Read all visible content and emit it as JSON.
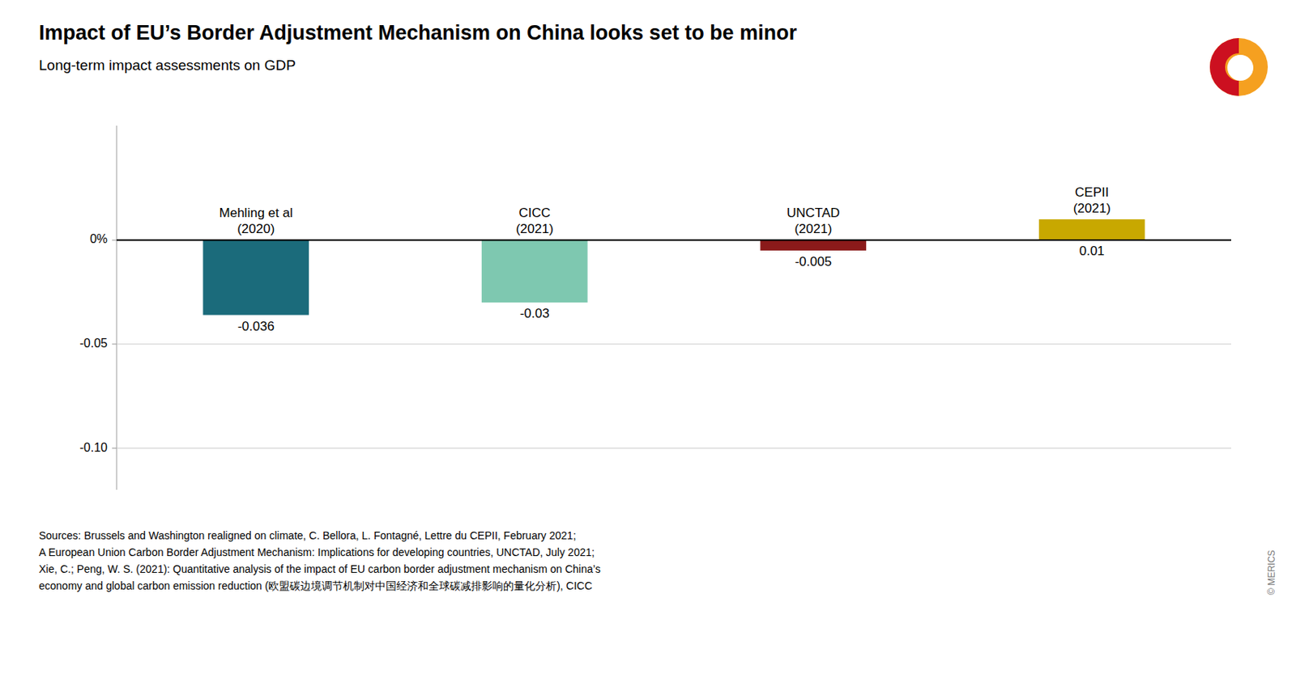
{
  "chart_data": {
    "type": "bar",
    "title": "Impact of EU’s Border Adjustment Mechanism on China looks set to be minor",
    "subtitle": "Long-term impact assessments on GDP",
    "categories": [
      "Mehling et al\n(2020)",
      "CICC\n(2021)",
      "UNCTAD\n(2021)",
      "CEPII\n(2021)"
    ],
    "values": [
      -0.036,
      -0.03,
      -0.005,
      0.01
    ],
    "value_labels": [
      "-0.036",
      "-0.03",
      "-0.005",
      "0.01"
    ],
    "colors": [
      "#1b6b7b",
      "#7ec8b0",
      "#8b1a1a",
      "#c8a800"
    ],
    "data_labels": true,
    "ylim": [
      -0.12,
      0.055
    ],
    "yticks": [
      {
        "value": 0,
        "label": "0%"
      },
      -0.05,
      {
        "value": -0.1,
        "label": "-0.10"
      }
    ],
    "grid": true,
    "annotations": [
      "Sources: Brussels and Washington realigned on climate, C. Bellora, L. Fontagné, Lettre du CEPII, February 2021;\nA European Union Carbon Border Adjustment Mechanism: Implications for developing countries, UNCTAD, July 2021;\nXie, C.; Peng, W. S. (2021): Quantitative analysis of the impact of EU carbon border adjustment mechanism on China’s\neconomy and global carbon emission reduction (欧盟碳边境调节机制对中国经济和全球碳减排影响的量化分析), CICC",
      "© MERICS"
    ]
  }
}
